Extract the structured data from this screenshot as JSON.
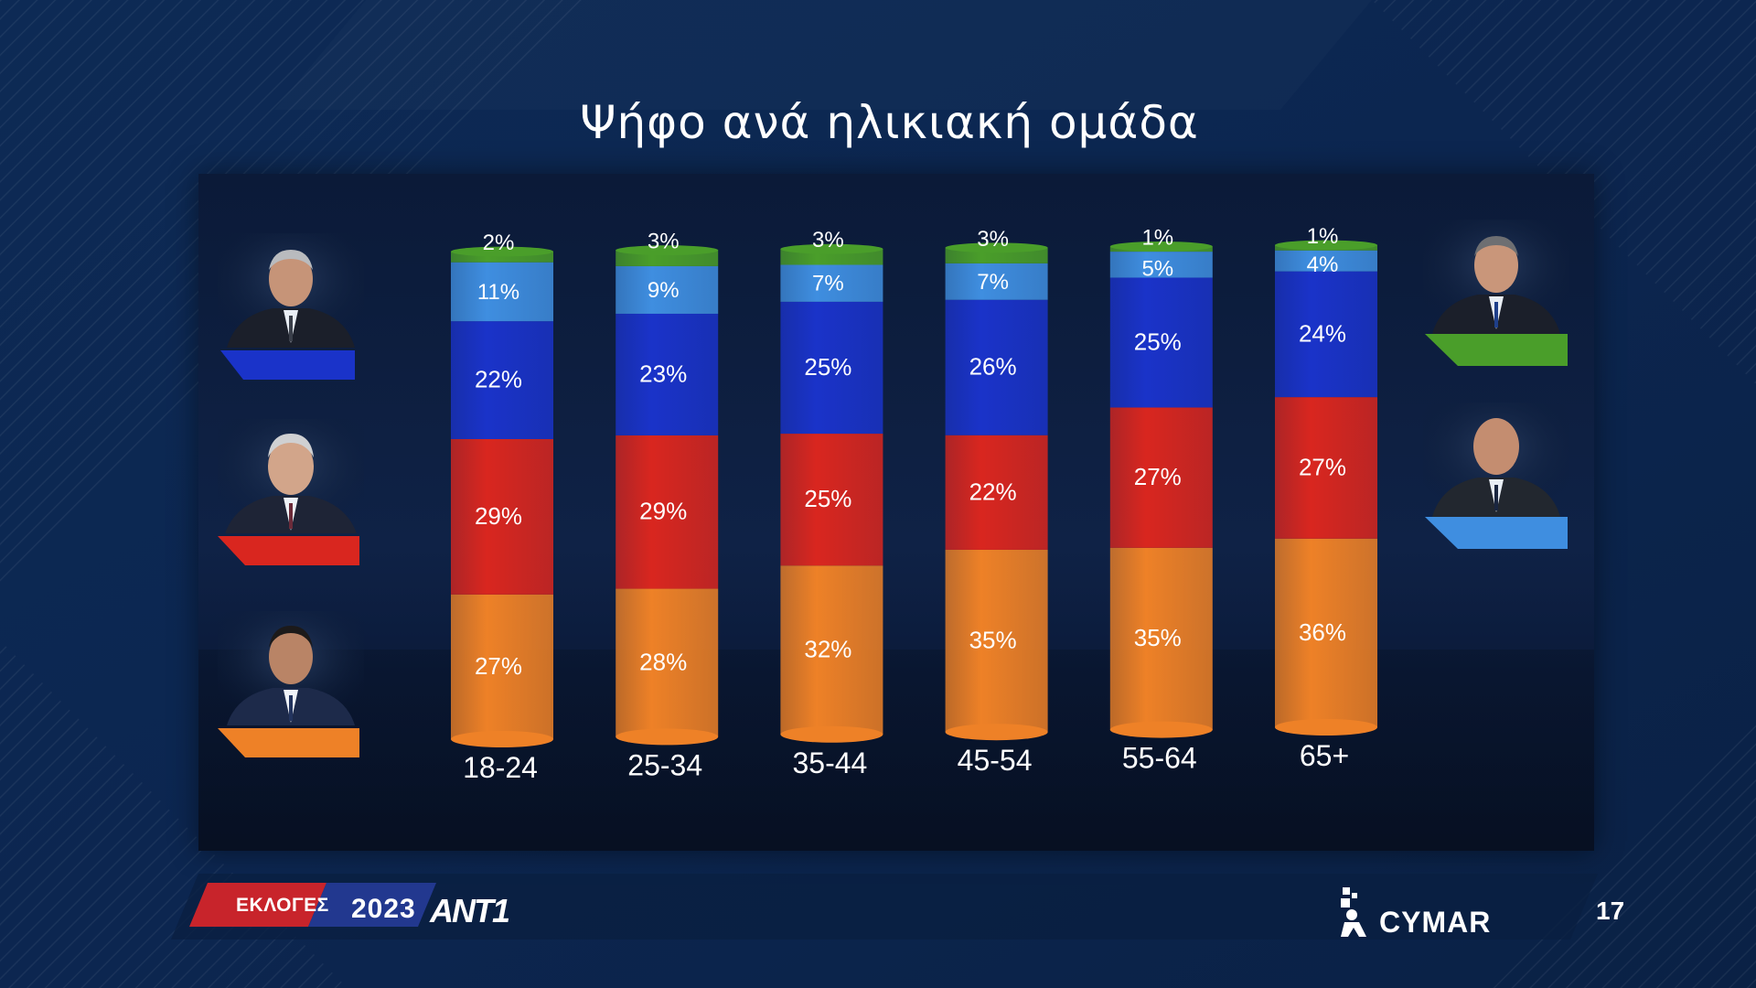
{
  "title": "Ψήφο ανά ηλικιακή ομάδα",
  "page_number": "17",
  "branding": {
    "elections_label": "ΕΚΛΟΓΕΣ",
    "year": "2023",
    "channel": "ANT1",
    "pollster": "CYMAR"
  },
  "candidates": {
    "left": [
      {
        "color_name": "blue",
        "color": "#1a33c9"
      },
      {
        "color_name": "red",
        "color": "#d9261f"
      },
      {
        "color_name": "orange",
        "color": "#ee8127"
      }
    ],
    "right": [
      {
        "color_name": "green",
        "color": "#4a9e2a"
      },
      {
        "color_name": "light-blue",
        "color": "#3f8ee0"
      }
    ]
  },
  "chart_data": {
    "type": "bar",
    "stacked": true,
    "categories": [
      "18-24",
      "25-34",
      "35-44",
      "45-54",
      "55-64",
      "65+"
    ],
    "series": [
      {
        "color": "#ee8127",
        "values": [
          27,
          28,
          32,
          35,
          35,
          36
        ]
      },
      {
        "color": "#d9261f",
        "values": [
          29,
          29,
          25,
          22,
          27,
          27
        ]
      },
      {
        "color": "#1a33c9",
        "values": [
          22,
          23,
          25,
          26,
          25,
          24
        ]
      },
      {
        "color": "#3f8ee0",
        "values": [
          11,
          9,
          7,
          7,
          5,
          4
        ]
      },
      {
        "color": "#4a9e2a",
        "values": [
          2,
          3,
          3,
          3,
          1,
          1
        ]
      }
    ],
    "value_suffix": "%",
    "grid": false,
    "legend": "candidate photos with color bars left and right"
  }
}
